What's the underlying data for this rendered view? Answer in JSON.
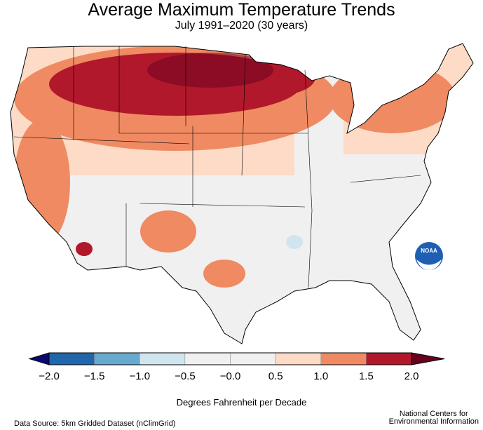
{
  "title": "Average Maximum Temperature Trends",
  "subtitle": "July 1991–2020 (30 years)",
  "legend": {
    "label": "Degrees Fahrenheit per Decade",
    "ticks": [
      "−2.0",
      "−1.5",
      "−1.0",
      "−0.5",
      "−0.0",
      "0.5",
      "1.0",
      "1.5",
      "2.0"
    ],
    "colors": [
      "#08086e",
      "#2166ac",
      "#67a9cf",
      "#d1e5f0",
      "#f0f0f0",
      "#f0f0f0",
      "#fddbc7",
      "#ef8a62",
      "#b2182b",
      "#67001f"
    ]
  },
  "footer": {
    "source": "Data Source: 5km Gridded Dataset (nClimGrid)",
    "org_line1": "National Centers for",
    "org_line2": "Environmental Information"
  },
  "logo": {
    "text": "NOAA"
  }
}
